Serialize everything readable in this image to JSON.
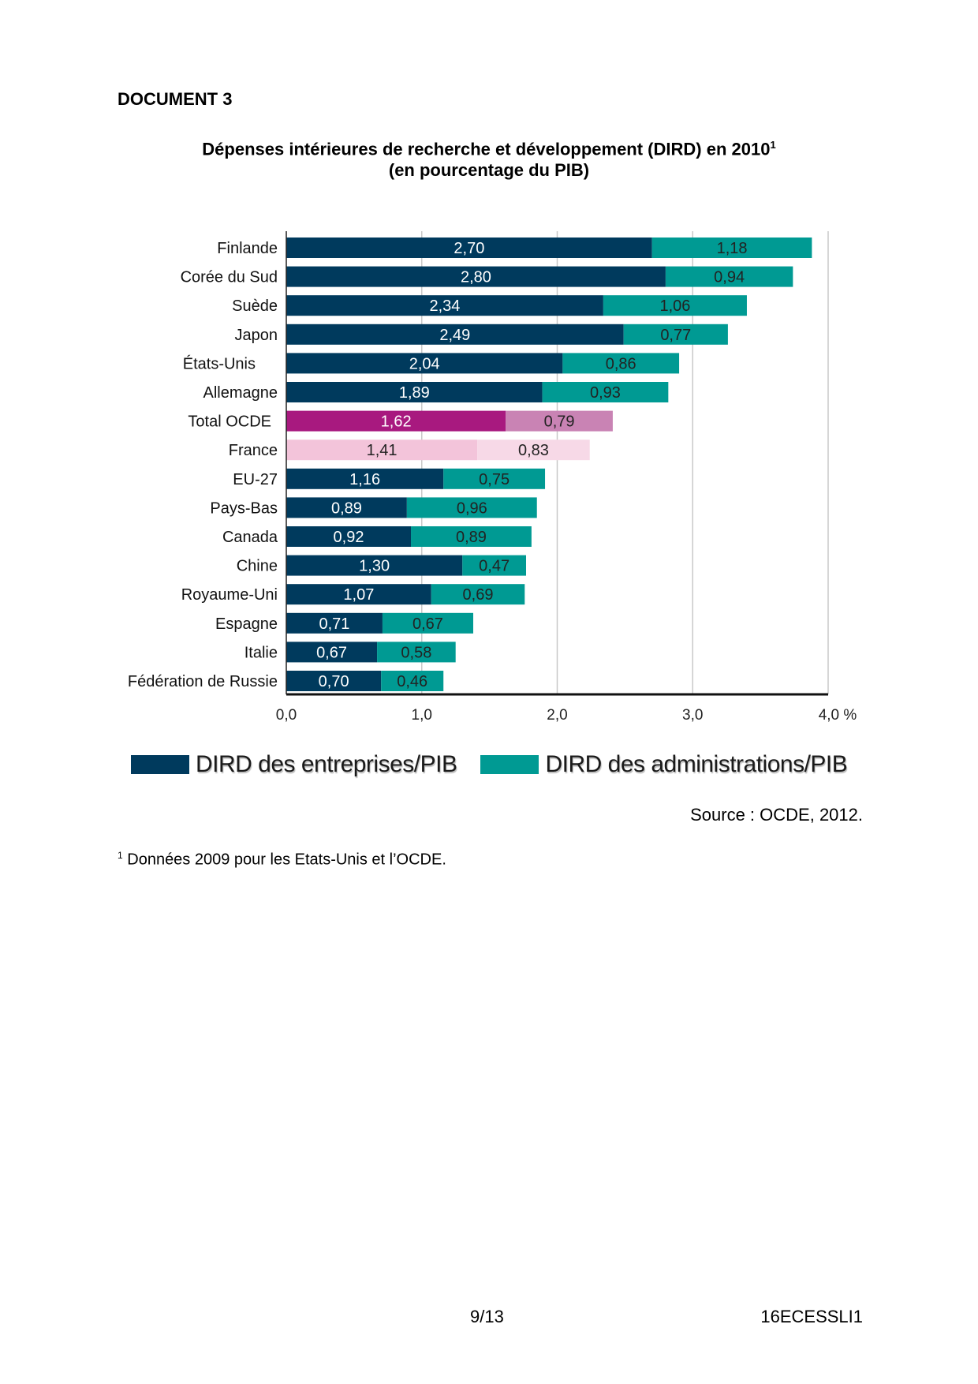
{
  "document": {
    "label": "DOCUMENT 3",
    "title_line1": "Dépenses intérieures de recherche et développement (DIRD) en 2010",
    "title_sup": "1",
    "title_line2": "(en pourcentage du PIB)",
    "source": "Source : OCDE, 2012.",
    "footnote_mark": "1",
    "footnote_text": "Données 2009 pour les Etats-Unis et l’OCDE.",
    "page_number": "9/13",
    "doc_code": "16ECESSLI1"
  },
  "colors": {
    "entreprises": "#003a5d",
    "administrations": "#009a93",
    "ocde_entreprises": "#a8197f",
    "ocde_administrations": "#c983b4",
    "france_entreprises": "#f3c4da",
    "france_administrations": "#f7d9e7",
    "grid": "#c8c8c8"
  },
  "chart_data": {
    "type": "bar",
    "orientation": "horizontal",
    "stacked": true,
    "title": "Dépenses intérieures de recherche et développement (DIRD) en 2010 (en pourcentage du PIB)",
    "categories": [
      "Finlande",
      "Corée du Sud",
      "Suède",
      "Japon",
      "États-Unis",
      "Allemagne",
      "Total OCDE",
      "France",
      "EU-27",
      "Pays-Bas",
      "Canada",
      "Chine",
      "Royaume-Uni",
      "Espagne",
      "Italie",
      "Fédération de Russie"
    ],
    "series": [
      {
        "name": "DIRD des entreprises/PIB",
        "values": [
          2.7,
          2.8,
          2.34,
          2.49,
          2.04,
          1.89,
          1.62,
          1.41,
          1.16,
          0.89,
          0.92,
          1.3,
          1.07,
          0.71,
          0.67,
          0.7
        ],
        "labels": [
          "2,70",
          "2,80",
          "2,34",
          "2,49",
          "2,04",
          "1,89",
          "1,62",
          "1,41",
          "1,16",
          "0,89",
          "0,92",
          "1,30",
          "1,07",
          "0,71",
          "0,67",
          "0,70"
        ]
      },
      {
        "name": "DIRD des administrations/PIB",
        "values": [
          1.18,
          0.94,
          1.06,
          0.77,
          0.86,
          0.93,
          0.79,
          0.83,
          0.75,
          0.96,
          0.89,
          0.47,
          0.69,
          0.67,
          0.58,
          0.46
        ],
        "labels": [
          "1,18",
          "0,94",
          "1,06",
          "0,77",
          "0,86",
          "0,93",
          "0,79",
          "0,83",
          "0,75",
          "0,96",
          "0,89",
          "0,47",
          "0,69",
          "0,67",
          "0,58",
          "0,46"
        ]
      }
    ],
    "xlim": [
      0,
      4.0
    ],
    "xticks": [
      0,
      1,
      2,
      3,
      4
    ],
    "xtick_labels": [
      "0,0",
      "1,0",
      "2,0",
      "3,0",
      "4,0 %"
    ],
    "grid": true,
    "legend_position": "bottom",
    "highlight": {
      "Total OCDE": "ocde",
      "France": "france"
    }
  }
}
